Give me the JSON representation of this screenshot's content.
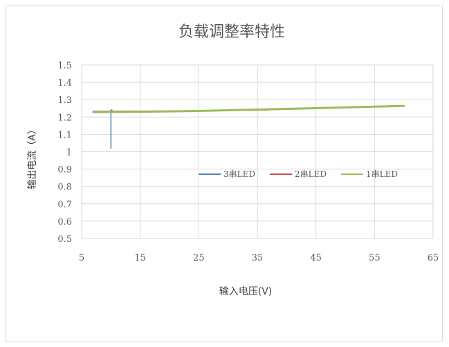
{
  "chart_data": {
    "type": "line",
    "title": "负载调整率特性",
    "xlabel": "输入电压(V)",
    "ylabel": "输出电流（A）",
    "xlim": [
      5,
      65
    ],
    "ylim": [
      0.5,
      1.5
    ],
    "xticks": [
      5,
      15,
      25,
      35,
      45,
      55,
      65
    ],
    "yticks": [
      0.5,
      0.6,
      0.7,
      0.8,
      0.9,
      1,
      1.1,
      1.2,
      1.3,
      1.4,
      1.5
    ],
    "ytick_labels": [
      "0.5",
      "0.6",
      "0.7",
      "0.8",
      "0.9",
      "1",
      "1.1",
      "1.2",
      "1.3",
      "1.4",
      "1.5"
    ],
    "grid": true,
    "legend_position": "right-middle",
    "series": [
      {
        "name": "3串LED",
        "color": "#4f81bd",
        "x": [
          10,
          10,
          10.2
        ],
        "y": [
          1.02,
          1.24,
          1.24
        ]
      },
      {
        "name": "2串LED",
        "color": "#c0504d",
        "x": [
          7,
          20,
          35,
          45,
          60
        ],
        "y": [
          1.232,
          1.234,
          1.24,
          1.252,
          1.265
        ]
      },
      {
        "name": "1串LED",
        "color": "#9bbb59",
        "x": [
          7,
          15,
          25,
          35,
          45,
          55,
          60
        ],
        "y": [
          1.228,
          1.23,
          1.235,
          1.243,
          1.251,
          1.26,
          1.264
        ]
      }
    ]
  }
}
